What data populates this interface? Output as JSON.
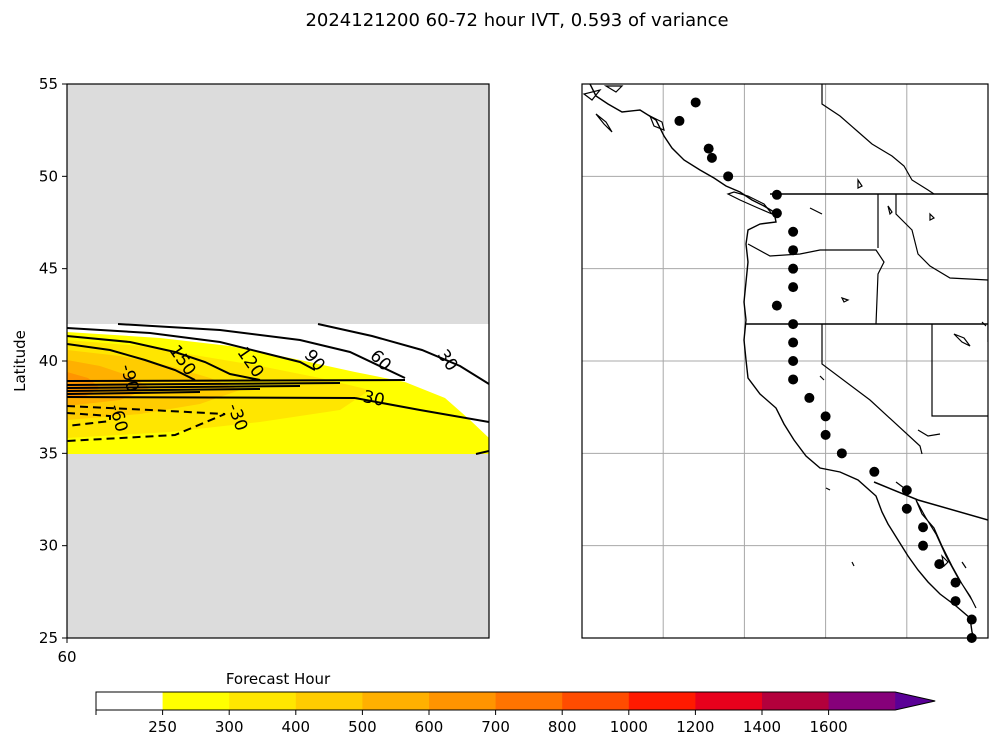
{
  "chart_data": [
    {
      "type": "contour",
      "title": "2024121200 60-72 hour IVT, 0.593 of variance",
      "xlabel": "Forecast Hour",
      "ylabel": "Latitude",
      "xlim": [
        60,
        72
      ],
      "ylim": [
        25,
        55
      ],
      "x_ticks": [
        "60"
      ],
      "y_ticks": [
        "25",
        "30",
        "35",
        "40",
        "45",
        "50",
        "55"
      ],
      "valid_lat_range": [
        35,
        42
      ],
      "masked_color": "#dcdcdc",
      "filled_levels": {
        "bounds": [
          250,
          300,
          400,
          500,
          600,
          700,
          800,
          1000,
          1200,
          1400,
          1600
        ],
        "tick_labels": [
          "250",
          "300",
          "400",
          "500",
          "600",
          "700",
          "800",
          "1000",
          "1200",
          "1400",
          "1600"
        ],
        "colors": [
          "#ffffff",
          "#ffff00",
          "#ffe600",
          "#ffcc00",
          "#ffb000",
          "#ff9400",
          "#ff7400",
          "#ff4c00",
          "#ff1a00",
          "#e8001c",
          "#b3003c",
          "#86007a",
          "#5a0096"
        ],
        "extend": "max"
      },
      "contour_labels": [
        "150",
        "120",
        "90",
        "60",
        "30",
        "30",
        "-90",
        "-60",
        "-30"
      ],
      "contour_style": {
        "positive": "solid",
        "negative": "dashed",
        "color": "#000000"
      }
    },
    {
      "type": "map",
      "region": "US West Coast",
      "lon_range": [
        -140,
        -115
      ],
      "lat_range": [
        25,
        55
      ],
      "gridlines": true,
      "grid_lons": [
        -135,
        -130,
        -125,
        -120,
        -115
      ],
      "grid_lats": [
        30,
        35,
        40,
        45,
        50
      ],
      "points": [
        [
          -133,
          54
        ],
        [
          -134,
          53
        ],
        [
          -132.2,
          51.5
        ],
        [
          -132,
          51
        ],
        [
          -131,
          50
        ],
        [
          -128,
          49
        ],
        [
          -128,
          48
        ],
        [
          -127,
          47
        ],
        [
          -127,
          46
        ],
        [
          -127,
          45
        ],
        [
          -127,
          44
        ],
        [
          -128,
          43
        ],
        [
          -127,
          42
        ],
        [
          -127,
          41
        ],
        [
          -127,
          40
        ],
        [
          -127,
          39
        ],
        [
          -126,
          38
        ],
        [
          -125,
          37
        ],
        [
          -125,
          36
        ],
        [
          -124,
          35
        ],
        [
          -122,
          34
        ],
        [
          -120,
          33
        ],
        [
          -120,
          32
        ],
        [
          -119,
          31
        ],
        [
          -119,
          30
        ],
        [
          -118,
          29
        ],
        [
          -117,
          28
        ],
        [
          -117,
          27
        ],
        [
          -116,
          26
        ],
        [
          -116,
          25
        ]
      ]
    }
  ]
}
